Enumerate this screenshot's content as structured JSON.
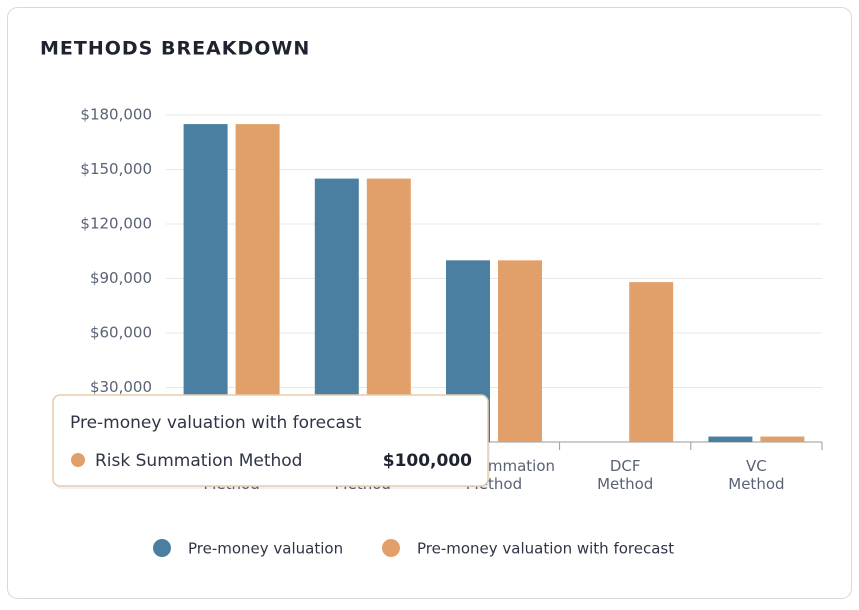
{
  "chart_data": {
    "type": "bar",
    "title": "METHODS BREAKDOWN",
    "categories": [
      "Method",
      "Method",
      "Risk Summation Method",
      "DCF Method",
      "VC Method"
    ],
    "series": [
      {
        "name": "Pre-money valuation",
        "color": "#4a7fa1",
        "values": [
          175000,
          145000,
          100000,
          0,
          3000
        ]
      },
      {
        "name": "Pre-money valuation with forecast",
        "color": "#e1a069",
        "values": [
          175000,
          145000,
          100000,
          88000,
          3000
        ]
      }
    ],
    "ylim": [
      0,
      180000
    ],
    "yticks": [
      {
        "value": 30000,
        "label": "$30,000"
      },
      {
        "value": 60000,
        "label": "$60,000"
      },
      {
        "value": 90000,
        "label": "$90,000"
      },
      {
        "value": 120000,
        "label": "$120,000"
      },
      {
        "value": 150000,
        "label": "$150,000"
      },
      {
        "value": 180000,
        "label": "$180,000"
      }
    ],
    "grid": true,
    "legend": "bottom",
    "tooltip": {
      "title": "Pre-money valuation with forecast",
      "category": "Risk Summation Method",
      "value_label": "$100,000"
    }
  }
}
